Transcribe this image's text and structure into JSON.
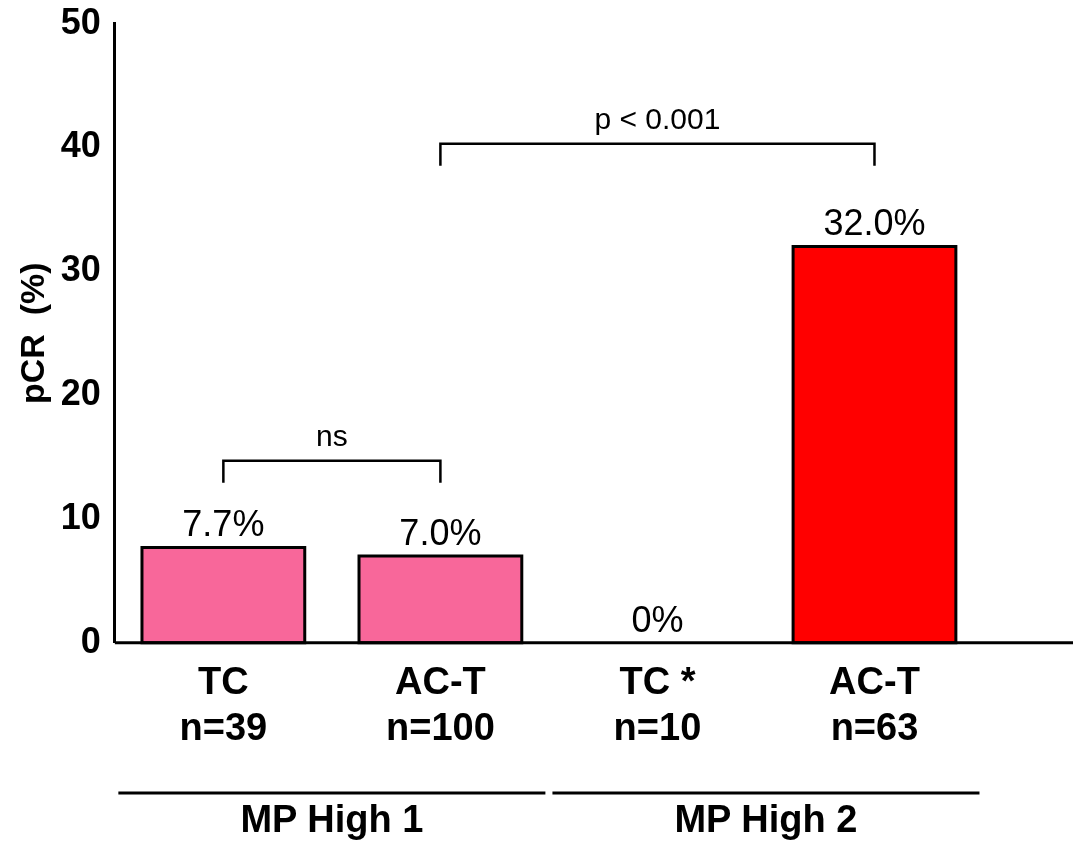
{
  "chart_data": {
    "type": "bar",
    "ylabel": "pCR  (%)",
    "categories": [
      "TC\nn=39",
      "AC-T\nn=100",
      "TC *\nn=10",
      "AC-T\nn=63"
    ],
    "values": [
      7.7,
      7.0,
      0,
      32.0
    ],
    "colors": [
      "#f8679a",
      "#f8679a",
      "#f8679a",
      "#ff0000"
    ],
    "value_labels": [
      "7.7%",
      "7.0%",
      "0%",
      "32.0%"
    ],
    "ylim": [
      0,
      50
    ],
    "yticks": [
      0,
      10,
      20,
      30,
      40,
      50
    ],
    "grid": false,
    "legend": false,
    "annotations": [
      "ns",
      "p < 0.001",
      "MP High 1",
      "MP High 2"
    ]
  }
}
